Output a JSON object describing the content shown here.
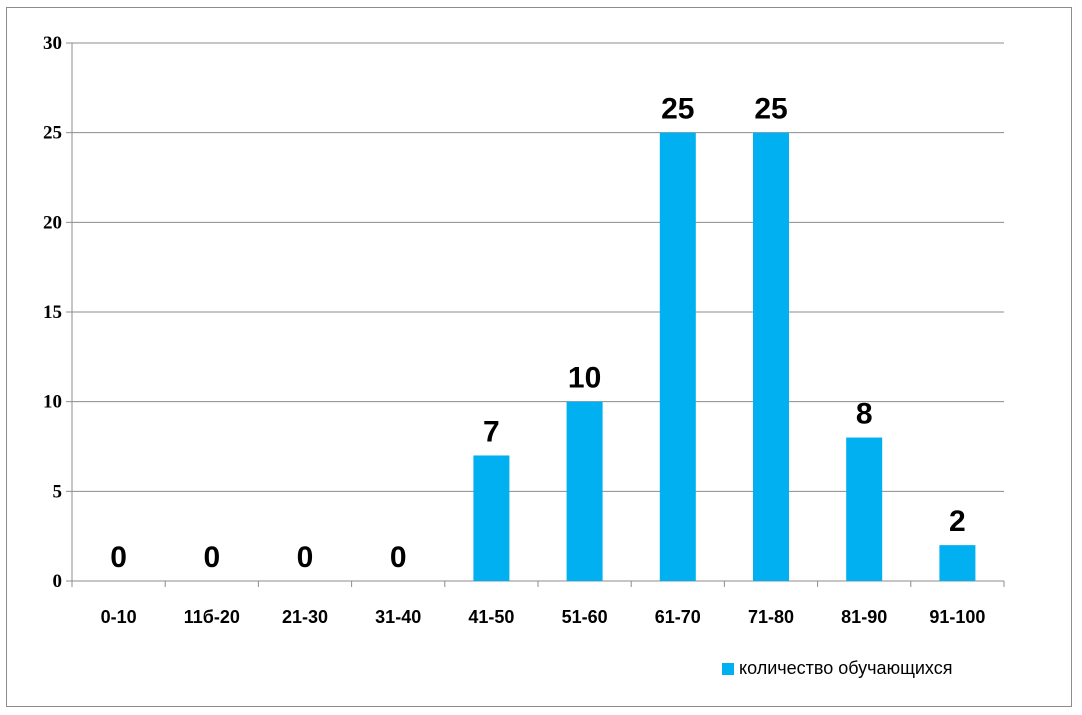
{
  "chart_data": {
    "type": "bar",
    "categories": [
      "0-10",
      "11б-20",
      "21-30",
      "31-40",
      "41-50",
      "51-60",
      "61-70",
      "71-80",
      "81-90",
      "91-100"
    ],
    "series": [
      {
        "name": "количество обучающихся",
        "values": [
          0,
          0,
          0,
          0,
          7,
          10,
          25,
          25,
          8,
          2
        ],
        "color": "#00B0F0"
      }
    ],
    "data_labels": [
      "0",
      "0",
      "0",
      "0",
      "7",
      "10",
      "25",
      "25",
      "8",
      "2"
    ],
    "ylim": [
      0,
      30
    ],
    "yticks": [
      "0",
      "5",
      "10",
      "15",
      "20",
      "25",
      "30"
    ],
    "grid": true,
    "legend_position": "bottom-right"
  }
}
